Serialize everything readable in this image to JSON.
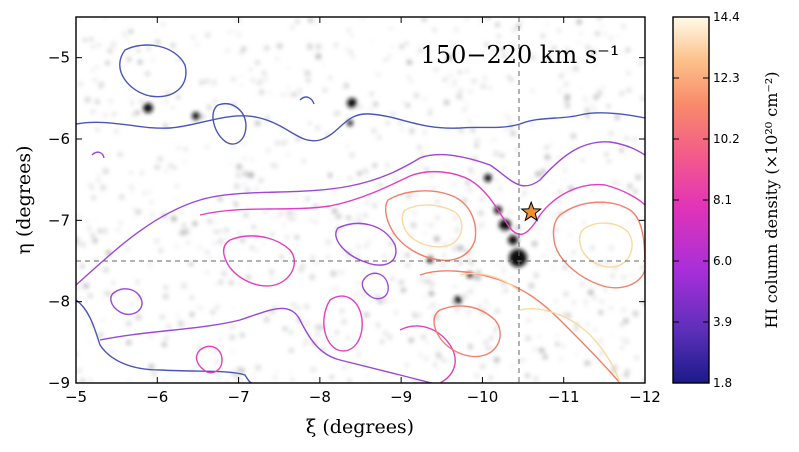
{
  "chart_data": {
    "type": "contour",
    "annotation": "150−220 km s⁻¹",
    "xlabel": "ξ (degrees)",
    "ylabel": "η (degrees)",
    "xlim": [
      -5,
      -12
    ],
    "ylim": [
      -9,
      -4.5
    ],
    "x_ticks": [
      "−5",
      "−6",
      "−7",
      "−8",
      "−9",
      "−10",
      "−11",
      "−12"
    ],
    "y_ticks": [
      "−5",
      "−6",
      "−7",
      "−8",
      "−9"
    ],
    "crosshair": {
      "xi": -10.45,
      "eta": -7.5
    },
    "star_marker": {
      "xi": -10.6,
      "eta": -6.9,
      "color": "#f0902a"
    },
    "colorbar": {
      "label": "HI column density (×10²⁰ cm⁻²)",
      "ticks": [
        "14.4",
        "12.3",
        "10.2",
        "8.1",
        "6.0",
        "3.9",
        "1.8"
      ],
      "range": [
        1.8,
        14.4
      ],
      "colormap": [
        "#1a1a8a",
        "#5b2fb8",
        "#a42fd9",
        "#e233b8",
        "#f45a8a",
        "#f88a6a",
        "#fcc08a",
        "#fff2c0"
      ]
    },
    "contour_colors": {
      "outer": "#4b55b8",
      "mid": "#9c47d6",
      "inner": "#e040c0",
      "high": "#f47f6b",
      "peak": "#fbd9a0"
    }
  }
}
